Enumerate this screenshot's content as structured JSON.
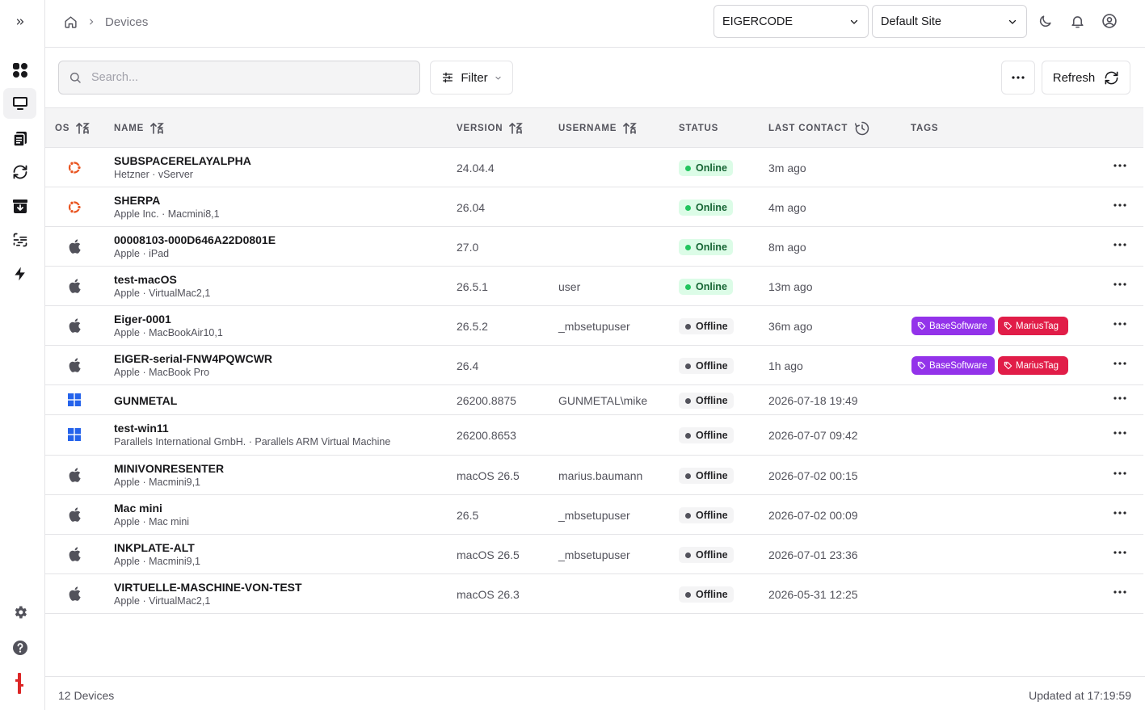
{
  "breadcrumb": {
    "page": "Devices"
  },
  "header": {
    "org_select": "EIGERCODE",
    "site_select": "Default Site"
  },
  "toolbar": {
    "search_placeholder": "Search...",
    "filter_label": "Filter",
    "refresh_label": "Refresh"
  },
  "columns": {
    "os": "OS",
    "name": "NAME",
    "version": "VERSION",
    "username": "USERNAME",
    "status": "STATUS",
    "last_contact": "LAST CONTACT",
    "tags": "TAGS"
  },
  "devices": [
    {
      "os": "ubuntu",
      "name": "SUBSPACERELAYALPHA",
      "sub": "Hetzner · vServer",
      "version": "24.04.4",
      "username": "",
      "status": "Online",
      "last_contact": "3m ago",
      "tags": []
    },
    {
      "os": "ubuntu",
      "name": "SHERPA",
      "sub": "Apple Inc. · Macmini8,1",
      "version": "26.04",
      "username": "",
      "status": "Online",
      "last_contact": "4m ago",
      "tags": []
    },
    {
      "os": "apple",
      "name": "00008103-000D646A22D0801E",
      "sub": "Apple · iPad",
      "version": "27.0",
      "username": "",
      "status": "Online",
      "last_contact": "8m ago",
      "tags": []
    },
    {
      "os": "apple",
      "name": "test-macOS",
      "sub": "Apple · VirtualMac2,1",
      "version": "26.5.1",
      "username": "user",
      "status": "Online",
      "last_contact": "13m ago",
      "tags": []
    },
    {
      "os": "apple",
      "name": "Eiger-0001",
      "sub": "Apple · MacBookAir10,1",
      "version": "26.5.2",
      "username": "_mbsetupuser",
      "status": "Offline",
      "last_contact": "36m ago",
      "tags": [
        "BaseSoftware",
        "MariusTag"
      ]
    },
    {
      "os": "apple",
      "name": "EIGER-serial-FNW4PQWCWR",
      "sub": "Apple · MacBook Pro",
      "version": "26.4",
      "username": "",
      "status": "Offline",
      "last_contact": "1h ago",
      "tags": [
        "BaseSoftware",
        "MariusTag"
      ]
    },
    {
      "os": "windows",
      "name": "GUNMETAL",
      "sub": "",
      "version": "26200.8875",
      "username": "GUNMETAL\\mike",
      "status": "Offline",
      "last_contact": "2026-07-18 19:49",
      "tags": []
    },
    {
      "os": "windows",
      "name": "test-win11",
      "sub": "Parallels International GmbH. · Parallels ARM Virtual Machine",
      "version": "26200.8653",
      "username": "",
      "status": "Offline",
      "last_contact": "2026-07-07 09:42",
      "tags": []
    },
    {
      "os": "apple",
      "name": "MINIVONRESENTER",
      "sub": "Apple · Macmini9,1",
      "version": "macOS 26.5",
      "username": "marius.baumann",
      "status": "Offline",
      "last_contact": "2026-07-02 00:15",
      "tags": []
    },
    {
      "os": "apple",
      "name": "Mac mini",
      "sub": "Apple · Mac mini",
      "version": "26.5",
      "username": "_mbsetupuser",
      "status": "Offline",
      "last_contact": "2026-07-02 00:09",
      "tags": []
    },
    {
      "os": "apple",
      "name": "INKPLATE-ALT",
      "sub": "Apple · Macmini9,1",
      "version": "macOS 26.5",
      "username": "_mbsetupuser",
      "status": "Offline",
      "last_contact": "2026-07-01 23:36",
      "tags": []
    },
    {
      "os": "apple",
      "name": "VIRTUELLE-MASCHINE-VON-TEST",
      "sub": "Apple · VirtualMac2,1",
      "version": "macOS 26.3",
      "username": "",
      "status": "Offline",
      "last_contact": "2026-05-31 12:25",
      "tags": []
    }
  ],
  "footer": {
    "count": "12 Devices",
    "updated": "Updated at 17:19:59"
  },
  "colors": {
    "tag_basesoftware": "#9333ea",
    "tag_mariustag": "#e11d48",
    "ubuntu": "#e95420",
    "windows": "#2563eb",
    "apple": "#52525b"
  }
}
